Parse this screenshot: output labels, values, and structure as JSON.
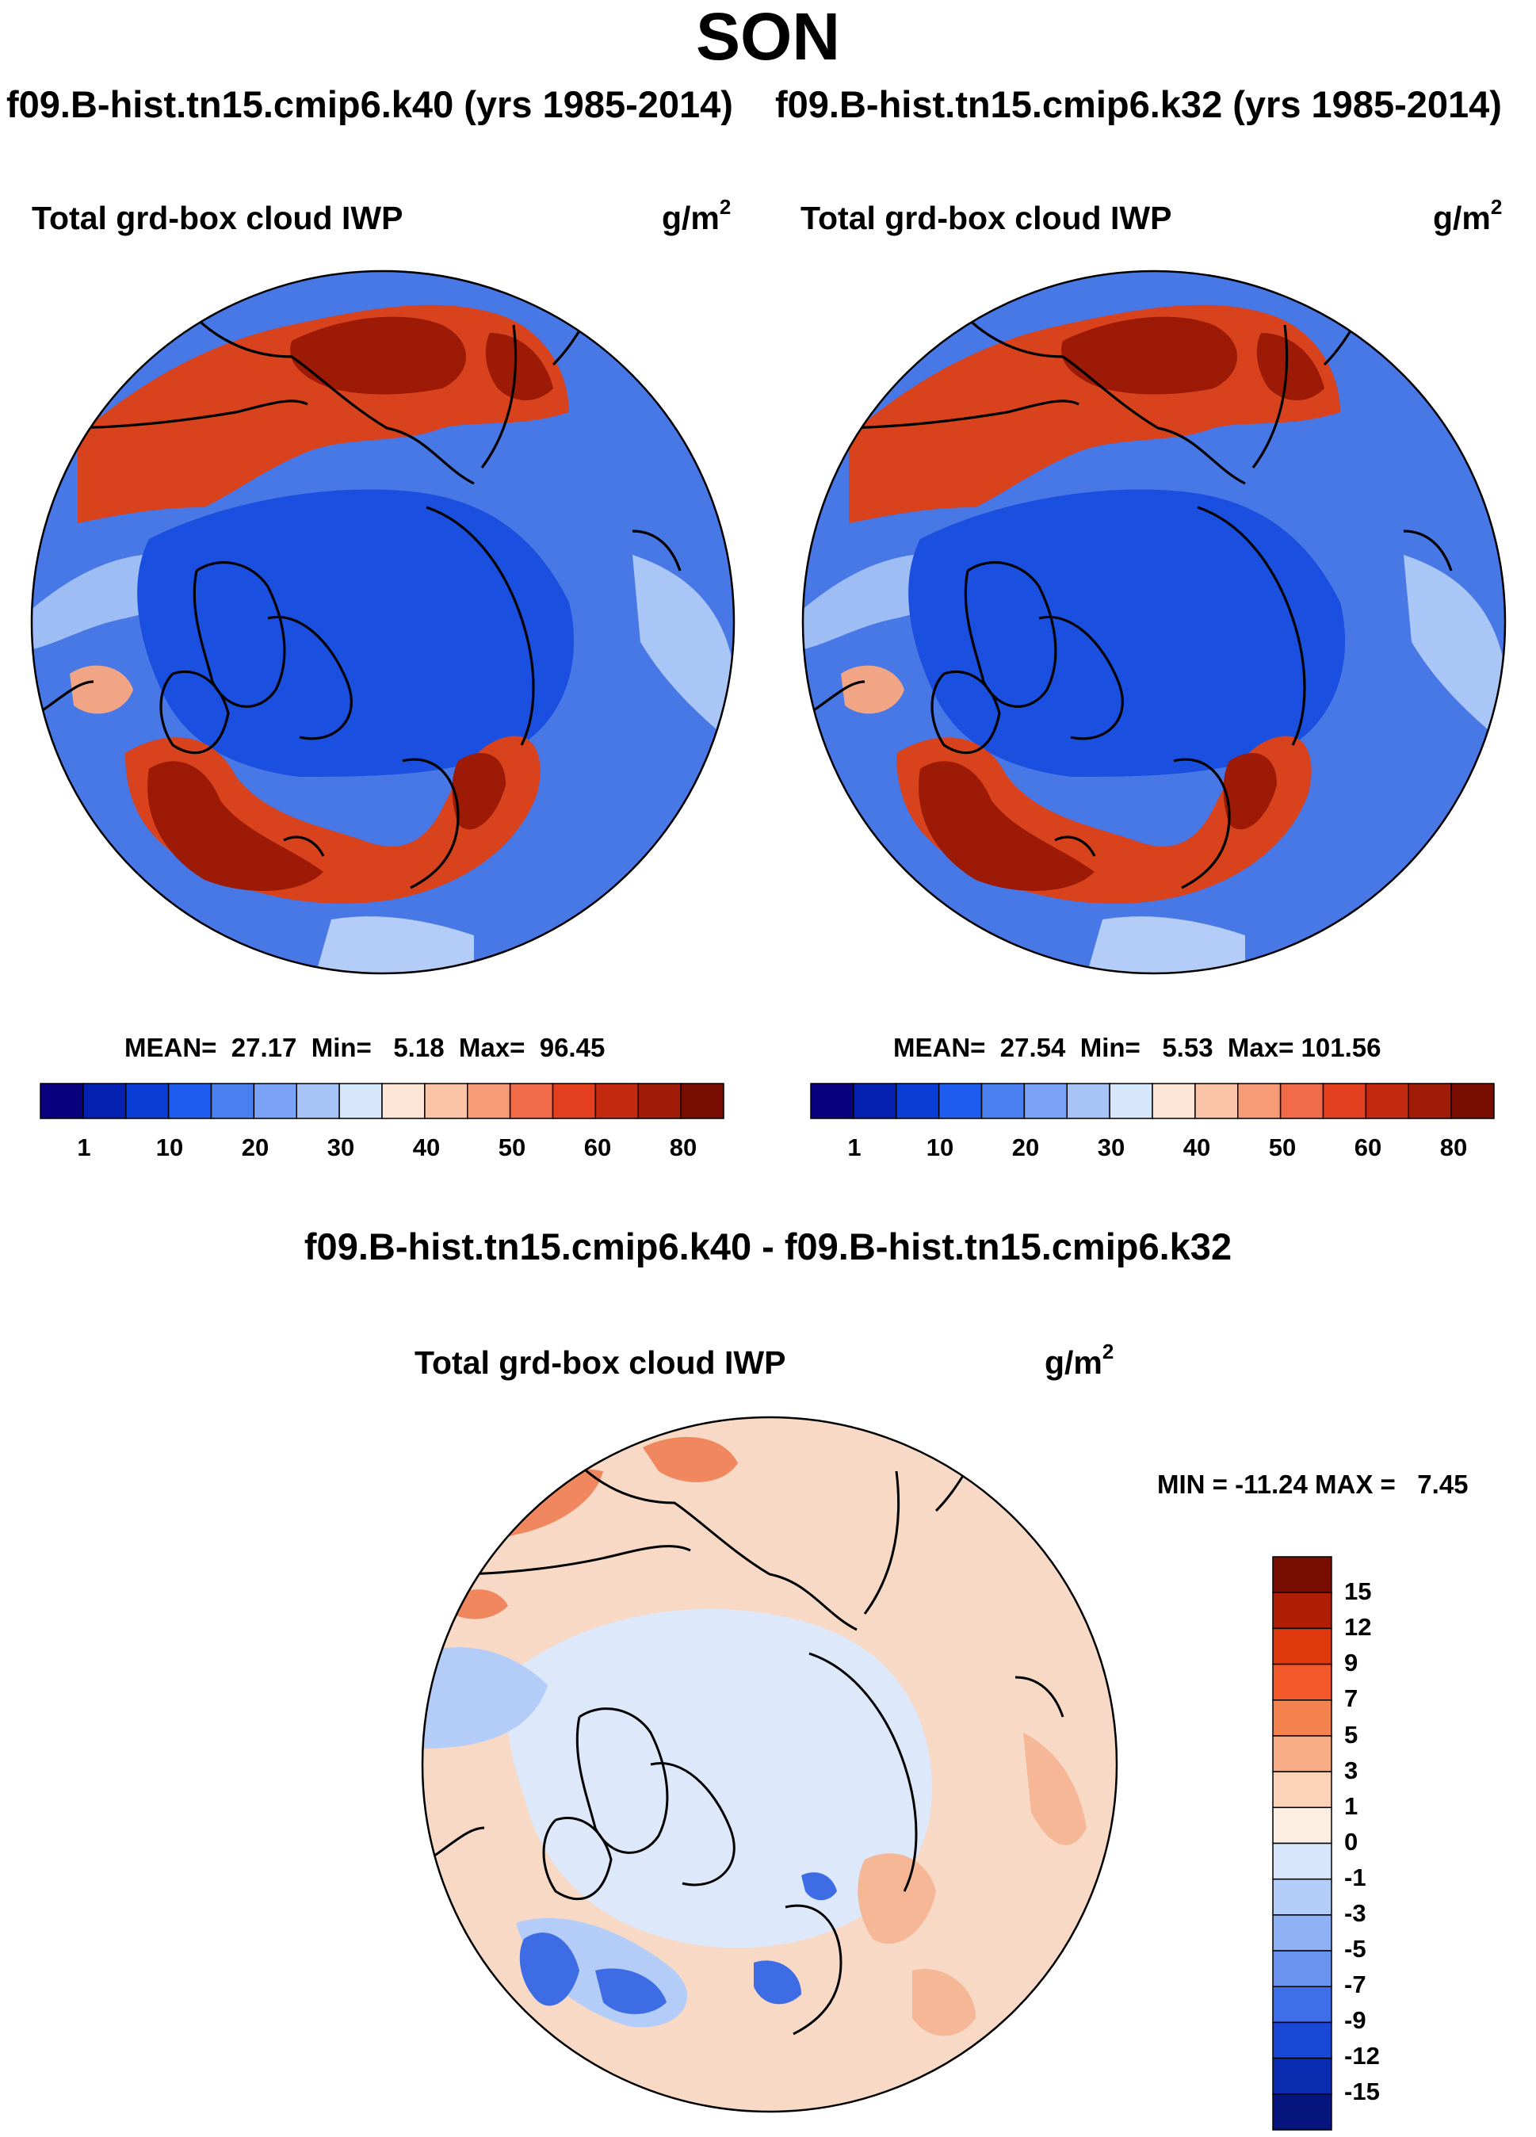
{
  "season": "SON",
  "top_panels": [
    {
      "case_label": "f09.B-hist.tn15.cmip6.k40 (yrs 1985-2014)",
      "title": "Total grd-box cloud IWP",
      "units": "g/m",
      "units_exp": "2",
      "stats": {
        "mean_label": "MEAN=",
        "mean": "27.17",
        "min_label": "Min=",
        "min": "5.18",
        "max_label": "Max=",
        "max": "96.45"
      }
    },
    {
      "case_label": "f09.B-hist.tn15.cmip6.k32 (yrs 1985-2014)",
      "title": "Total grd-box cloud IWP",
      "units": "g/m",
      "units_exp": "2",
      "stats": {
        "mean_label": "MEAN=",
        "mean": "27.54",
        "min_label": "Min=",
        "min": "5.53",
        "max_label": "Max=",
        "max": "101.56"
      }
    }
  ],
  "diff_panel": {
    "case_label": "f09.B-hist.tn15.cmip6.k40 - f09.B-hist.tn15.cmip6.k32",
    "title": "Total grd-box cloud IWP",
    "units": "g/m",
    "units_exp": "2",
    "stats": "MIN = -11.24 MAX =   7.45"
  },
  "colorbar_abs": {
    "colors": [
      "#08007d",
      "#0420b0",
      "#0a3ed6",
      "#1e5cf0",
      "#4a7fef",
      "#7aa3f5",
      "#a8c4f7",
      "#d6e6fb",
      "#fde6d6",
      "#fbc4a6",
      "#f79a76",
      "#f26b48",
      "#e4401f",
      "#c42a10",
      "#a01c08",
      "#7a0d02"
    ],
    "ticks": [
      "1",
      "10",
      "20",
      "30",
      "40",
      "50",
      "60",
      "80"
    ]
  },
  "colorbar_diff": {
    "colors": [
      "#7a0d02",
      "#b01e06",
      "#e0380d",
      "#f2582a",
      "#f4824f",
      "#f9ad86",
      "#fcd2b8",
      "#fdeee2",
      "#d8e6fb",
      "#b4cdf8",
      "#8eb2f5",
      "#6a93f0",
      "#3e6eea",
      "#1a48d6",
      "#0a2cb0",
      "#06157e"
    ],
    "ticks": [
      "15",
      "12",
      "9",
      "7",
      "5",
      "3",
      "1",
      "0",
      "-1",
      "-3",
      "-5",
      "-7",
      "-9",
      "-12",
      "-15"
    ]
  },
  "maps": {
    "ocean_abs": "#4877e6",
    "arctic_abs": "#1b4fe0",
    "warm_abs": "#d8421d",
    "hot_abs": "#9c1a06",
    "ocean_diff": "#f7d9c6",
    "arctic_diff": "#dde8fb",
    "neg_diff": "#3e6ce4",
    "pos_diff": "#f0875e"
  }
}
